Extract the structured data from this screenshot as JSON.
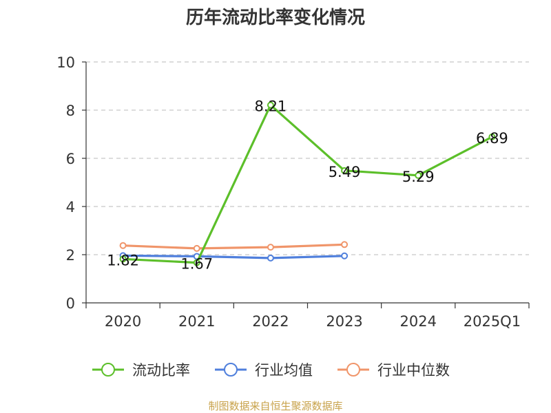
{
  "chart_data": {
    "type": "line",
    "title": "历年流动比率变化情况",
    "categories": [
      "2020",
      "2021",
      "2022",
      "2023",
      "2024",
      "2025Q1"
    ],
    "ylim": [
      0,
      10
    ],
    "yticks": [
      0,
      2,
      4,
      6,
      8,
      10
    ],
    "grid": true,
    "legend_position": "bottom",
    "series": [
      {
        "name": "流动比率",
        "color": "#5cbf2a",
        "values": [
          1.82,
          1.67,
          8.21,
          5.49,
          5.29,
          6.89
        ],
        "labels": [
          "1.82",
          "1.67",
          "8.21",
          "5.49",
          "5.29",
          "6.89"
        ]
      },
      {
        "name": "行业均值",
        "color": "#4f7fdc",
        "values": [
          1.96,
          1.93,
          1.86,
          1.95,
          null,
          null
        ]
      },
      {
        "name": "行业中位数",
        "color": "#f0956a",
        "values": [
          2.38,
          2.26,
          2.31,
          2.42,
          null,
          null
        ]
      }
    ]
  },
  "footer": {
    "source": "制图数据来自恒生聚源数据库"
  }
}
